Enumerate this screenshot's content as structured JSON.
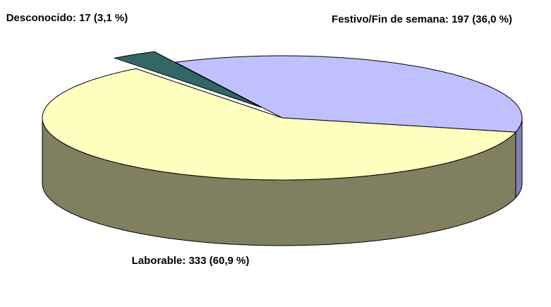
{
  "chart_data": {
    "type": "pie3d",
    "categories": [
      "Festivo/Fin de semana",
      "Laborable",
      "Desconocido"
    ],
    "values": [
      197,
      333,
      17
    ],
    "value_labels": [
      "Festivo/Fin de semana: 197 (36,0 %)",
      "Laborable: 333 (60,9 %)",
      "Desconocido: 17 (3,1 %)"
    ],
    "colors": [
      "#c0c0ff",
      "#ffffc0",
      "#336666"
    ],
    "side_colors": [
      "#8080b8",
      "#808060",
      "#1a3838"
    ]
  }
}
